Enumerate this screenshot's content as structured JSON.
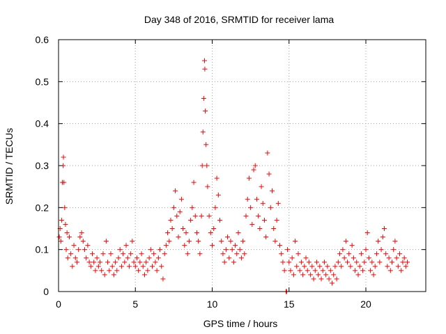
{
  "chart_data": {
    "type": "scatter",
    "title": "Day 348 of 2016, SRMTID for receiver lama",
    "xlabel": "GPS time / hours",
    "ylabel": "SRMTID / TECUs",
    "xlim": [
      0,
      23.9
    ],
    "ylim": [
      0,
      0.6
    ],
    "xticks": [
      "0",
      "5",
      "10",
      "15",
      "20"
    ],
    "xtick_values": [
      0,
      5,
      10,
      15,
      20
    ],
    "yticks": [
      "0",
      "0.1",
      "0.2",
      "0.3",
      "0.4",
      "0.5",
      "0.6"
    ],
    "ytick_values": [
      0,
      0.1,
      0.2,
      0.3,
      0.4,
      0.5,
      0.6
    ],
    "grid": true,
    "marker": "plus",
    "color": "#ff0000",
    "series": [
      {
        "name": "SRMTID",
        "points": [
          [
            0.05,
            0.13
          ],
          [
            0.1,
            0.15
          ],
          [
            0.15,
            0.12
          ],
          [
            0.2,
            0.17
          ],
          [
            0.25,
            0.26
          ],
          [
            0.3,
            0.3
          ],
          [
            0.32,
            0.32
          ],
          [
            0.35,
            0.26
          ],
          [
            0.4,
            0.2
          ],
          [
            0.45,
            0.16
          ],
          [
            0.5,
            0.1
          ],
          [
            0.55,
            0.14
          ],
          [
            0.6,
            0.08
          ],
          [
            0.7,
            0.13
          ],
          [
            0.8,
            0.09
          ],
          [
            0.9,
            0.06
          ],
          [
            1.0,
            0.11
          ],
          [
            1.1,
            0.08
          ],
          [
            1.2,
            0.07
          ],
          [
            1.3,
            0.1
          ],
          [
            1.4,
            0.13
          ],
          [
            1.5,
            0.14
          ],
          [
            1.6,
            0.12
          ],
          [
            1.7,
            0.1
          ],
          [
            1.8,
            0.08
          ],
          [
            1.9,
            0.11
          ],
          [
            2.0,
            0.07
          ],
          [
            2.1,
            0.06
          ],
          [
            2.2,
            0.09
          ],
          [
            2.3,
            0.07
          ],
          [
            2.4,
            0.05
          ],
          [
            2.5,
            0.08
          ],
          [
            2.6,
            0.06
          ],
          [
            2.7,
            0.07
          ],
          [
            2.8,
            0.05
          ],
          [
            2.9,
            0.09
          ],
          [
            3.0,
            0.04
          ],
          [
            3.1,
            0.12
          ],
          [
            3.2,
            0.07
          ],
          [
            3.3,
            0.05
          ],
          [
            3.4,
            0.09
          ],
          [
            3.5,
            0.06
          ],
          [
            3.6,
            0.04
          ],
          [
            3.7,
            0.07
          ],
          [
            3.8,
            0.05
          ],
          [
            3.9,
            0.08
          ],
          [
            4.0,
            0.1
          ],
          [
            4.1,
            0.06
          ],
          [
            4.2,
            0.09
          ],
          [
            4.3,
            0.07
          ],
          [
            4.4,
            0.11
          ],
          [
            4.5,
            0.08
          ],
          [
            4.6,
            0.06
          ],
          [
            4.7,
            0.09
          ],
          [
            4.8,
            0.12
          ],
          [
            4.9,
            0.07
          ],
          [
            5.0,
            0.06
          ],
          [
            5.1,
            0.08
          ],
          [
            5.2,
            0.05
          ],
          [
            5.3,
            0.07
          ],
          [
            5.4,
            0.09
          ],
          [
            5.5,
            0.06
          ],
          [
            5.6,
            0.04
          ],
          [
            5.7,
            0.07
          ],
          [
            5.8,
            0.05
          ],
          [
            5.9,
            0.08
          ],
          [
            6.0,
            0.1
          ],
          [
            6.1,
            0.06
          ],
          [
            6.2,
            0.09
          ],
          [
            6.3,
            0.07
          ],
          [
            6.4,
            0.05
          ],
          [
            6.5,
            0.08
          ],
          [
            6.6,
            0.1
          ],
          [
            6.7,
            0.06
          ],
          [
            6.8,
            0.03
          ],
          [
            6.9,
            0.09
          ],
          [
            7.0,
            0.11
          ],
          [
            7.1,
            0.14
          ],
          [
            7.2,
            0.12
          ],
          [
            7.3,
            0.17
          ],
          [
            7.4,
            0.15
          ],
          [
            7.5,
            0.2
          ],
          [
            7.6,
            0.24
          ],
          [
            7.7,
            0.18
          ],
          [
            7.8,
            0.13
          ],
          [
            7.9,
            0.19
          ],
          [
            8.0,
            0.22
          ],
          [
            8.1,
            0.15
          ],
          [
            8.2,
            0.11
          ],
          [
            8.3,
            0.14
          ],
          [
            8.4,
            0.09
          ],
          [
            8.5,
            0.12
          ],
          [
            8.6,
            0.17
          ],
          [
            8.7,
            0.2
          ],
          [
            8.8,
            0.26
          ],
          [
            8.9,
            0.18
          ],
          [
            9.0,
            0.14
          ],
          [
            9.1,
            0.12
          ],
          [
            9.2,
            0.09
          ],
          [
            9.3,
            0.18
          ],
          [
            9.35,
            0.3
          ],
          [
            9.4,
            0.38
          ],
          [
            9.45,
            0.46
          ],
          [
            9.5,
            0.55
          ],
          [
            9.52,
            0.53
          ],
          [
            9.55,
            0.43
          ],
          [
            9.6,
            0.35
          ],
          [
            9.65,
            0.3
          ],
          [
            9.7,
            0.25
          ],
          [
            9.8,
            0.18
          ],
          [
            9.9,
            0.14
          ],
          [
            10.0,
            0.11
          ],
          [
            10.1,
            0.15
          ],
          [
            10.2,
            0.2
          ],
          [
            10.3,
            0.27
          ],
          [
            10.4,
            0.23
          ],
          [
            10.5,
            0.17
          ],
          [
            10.6,
            0.12
          ],
          [
            10.7,
            0.09
          ],
          [
            10.8,
            0.07
          ],
          [
            10.9,
            0.1
          ],
          [
            11.0,
            0.13
          ],
          [
            11.1,
            0.08
          ],
          [
            11.2,
            0.12
          ],
          [
            11.3,
            0.1
          ],
          [
            11.4,
            0.07
          ],
          [
            11.5,
            0.11
          ],
          [
            11.6,
            0.09
          ],
          [
            11.7,
            0.14
          ],
          [
            11.8,
            0.1
          ],
          [
            11.9,
            0.08
          ],
          [
            12.0,
            0.12
          ],
          [
            12.1,
            0.09
          ],
          [
            12.2,
            0.18
          ],
          [
            12.3,
            0.22
          ],
          [
            12.4,
            0.27
          ],
          [
            12.5,
            0.2
          ],
          [
            12.6,
            0.16
          ],
          [
            12.7,
            0.29
          ],
          [
            12.8,
            0.3
          ],
          [
            12.9,
            0.22
          ],
          [
            13.0,
            0.18
          ],
          [
            13.1,
            0.15
          ],
          [
            13.2,
            0.25
          ],
          [
            13.3,
            0.21
          ],
          [
            13.4,
            0.17
          ],
          [
            13.5,
            0.13
          ],
          [
            13.6,
            0.33
          ],
          [
            13.7,
            0.28
          ],
          [
            13.8,
            0.2
          ],
          [
            13.9,
            0.24
          ],
          [
            14.0,
            0.15
          ],
          [
            14.1,
            0.12
          ],
          [
            14.2,
            0.17
          ],
          [
            14.3,
            0.21
          ],
          [
            14.4,
            0.11
          ],
          [
            14.5,
            0.09
          ],
          [
            14.6,
            0.07
          ],
          [
            14.7,
            0.05
          ],
          [
            14.8,
            0.0
          ],
          [
            14.85,
            0.0
          ],
          [
            14.9,
            0.1
          ],
          [
            15.0,
            0.07
          ],
          [
            15.1,
            0.05
          ],
          [
            15.2,
            0.08
          ],
          [
            15.3,
            0.04
          ],
          [
            15.4,
            0.12
          ],
          [
            15.5,
            0.06
          ],
          [
            15.6,
            0.09
          ],
          [
            15.7,
            0.05
          ],
          [
            15.8,
            0.07
          ],
          [
            15.9,
            0.04
          ],
          [
            16.0,
            0.06
          ],
          [
            16.1,
            0.08
          ],
          [
            16.2,
            0.05
          ],
          [
            16.3,
            0.07
          ],
          [
            16.4,
            0.04
          ],
          [
            16.5,
            0.06
          ],
          [
            16.6,
            0.03
          ],
          [
            16.7,
            0.05
          ],
          [
            16.8,
            0.07
          ],
          [
            16.9,
            0.04
          ],
          [
            17.0,
            0.06
          ],
          [
            17.1,
            0.03
          ],
          [
            17.2,
            0.05
          ],
          [
            17.3,
            0.07
          ],
          [
            17.4,
            0.04
          ],
          [
            17.5,
            0.06
          ],
          [
            17.6,
            0.03
          ],
          [
            17.7,
            0.05
          ],
          [
            17.8,
            0.02
          ],
          [
            17.9,
            0.04
          ],
          [
            18.0,
            0.06
          ],
          [
            18.1,
            0.03
          ],
          [
            18.2,
            0.07
          ],
          [
            18.3,
            0.09
          ],
          [
            18.4,
            0.06
          ],
          [
            18.5,
            0.1
          ],
          [
            18.6,
            0.08
          ],
          [
            18.7,
            0.12
          ],
          [
            18.8,
            0.07
          ],
          [
            18.9,
            0.09
          ],
          [
            19.0,
            0.06
          ],
          [
            19.1,
            0.11
          ],
          [
            19.2,
            0.08
          ],
          [
            19.3,
            0.05
          ],
          [
            19.4,
            0.07
          ],
          [
            19.5,
            0.04
          ],
          [
            19.6,
            0.06
          ],
          [
            19.7,
            0.09
          ],
          [
            19.8,
            0.05
          ],
          [
            19.9,
            0.07
          ],
          [
            20.0,
            0.1
          ],
          [
            20.1,
            0.14
          ],
          [
            20.2,
            0.08
          ],
          [
            20.3,
            0.05
          ],
          [
            20.4,
            0.07
          ],
          [
            20.5,
            0.04
          ],
          [
            20.6,
            0.06
          ],
          [
            20.7,
            0.09
          ],
          [
            20.8,
            0.12
          ],
          [
            20.9,
            0.07
          ],
          [
            21.0,
            0.1
          ],
          [
            21.1,
            0.13
          ],
          [
            21.2,
            0.15
          ],
          [
            21.3,
            0.09
          ],
          [
            21.4,
            0.06
          ],
          [
            21.5,
            0.08
          ],
          [
            21.6,
            0.05
          ],
          [
            21.7,
            0.07
          ],
          [
            21.8,
            0.1
          ],
          [
            21.9,
            0.12
          ],
          [
            22.0,
            0.08
          ],
          [
            22.1,
            0.06
          ],
          [
            22.2,
            0.09
          ],
          [
            22.3,
            0.05
          ],
          [
            22.4,
            0.07
          ],
          [
            22.5,
            0.08
          ],
          [
            22.6,
            0.06
          ],
          [
            22.7,
            0.07
          ]
        ]
      }
    ]
  }
}
